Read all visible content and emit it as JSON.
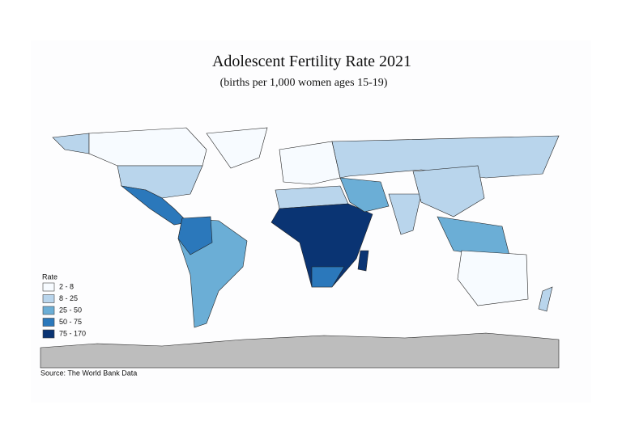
{
  "title": "Adolescent Fertility Rate 2021",
  "subtitle": "(births per 1,000 women ages 15-19)",
  "legend": {
    "title": "Rate",
    "items": [
      {
        "label": "2 - 8",
        "color": "#f7fbff"
      },
      {
        "label": "8 - 25",
        "color": "#b9d5ec"
      },
      {
        "label": "25 - 50",
        "color": "#6baed6"
      },
      {
        "label": "50 - 75",
        "color": "#2b78bb"
      },
      {
        "label": "75 - 170",
        "color": "#0a3473"
      }
    ]
  },
  "source": "Source: The World Bank Data"
}
